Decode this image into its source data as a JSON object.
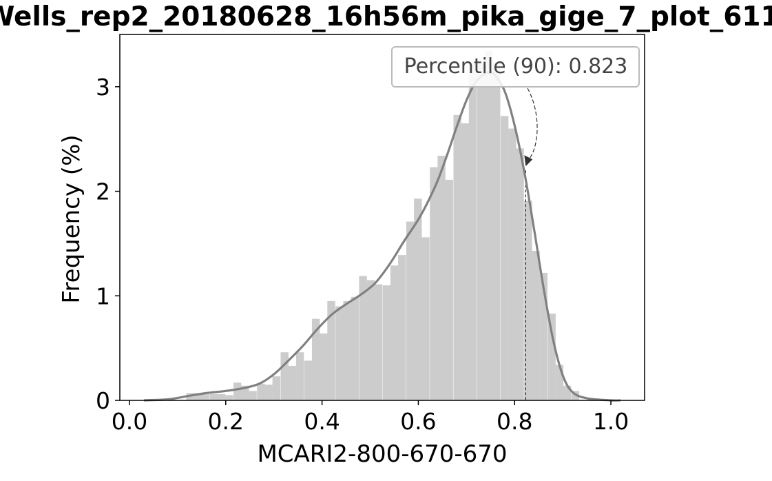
{
  "chart_data": {
    "type": "histogram",
    "title": "Wells_rep2_20180628_16h56m_pika_gige_7_plot_611",
    "xlabel": "MCARI2-800-670-670",
    "ylabel": "Frequency (%)",
    "xlim": [
      -0.02,
      1.07
    ],
    "ylim": [
      0,
      3.5
    ],
    "xticks": [
      0.0,
      0.2,
      0.4,
      0.6,
      0.8,
      1.0
    ],
    "xtick_labels": [
      "0.0",
      "0.2",
      "0.4",
      "0.6",
      "0.8",
      "1.0"
    ],
    "yticks": [
      0,
      1,
      2,
      3
    ],
    "ytick_labels": [
      "0",
      "1",
      "2",
      "3"
    ],
    "bin_width": 0.0163,
    "bins": [
      {
        "x0": 0.118,
        "h": 0.07
      },
      {
        "x0": 0.134,
        "h": 0.07
      },
      {
        "x0": 0.15,
        "h": 0.06
      },
      {
        "x0": 0.167,
        "h": 0.06
      },
      {
        "x0": 0.183,
        "h": 0.06
      },
      {
        "x0": 0.199,
        "h": 0.05
      },
      {
        "x0": 0.216,
        "h": 0.17
      },
      {
        "x0": 0.232,
        "h": 0.14
      },
      {
        "x0": 0.248,
        "h": 0.09
      },
      {
        "x0": 0.265,
        "h": 0.16
      },
      {
        "x0": 0.281,
        "h": 0.15
      },
      {
        "x0": 0.297,
        "h": 0.23
      },
      {
        "x0": 0.314,
        "h": 0.46
      },
      {
        "x0": 0.33,
        "h": 0.33
      },
      {
        "x0": 0.346,
        "h": 0.46
      },
      {
        "x0": 0.363,
        "h": 0.38
      },
      {
        "x0": 0.379,
        "h": 0.78
      },
      {
        "x0": 0.395,
        "h": 0.64
      },
      {
        "x0": 0.411,
        "h": 0.95
      },
      {
        "x0": 0.428,
        "h": 0.9
      },
      {
        "x0": 0.444,
        "h": 0.95
      },
      {
        "x0": 0.46,
        "h": 0.99
      },
      {
        "x0": 0.477,
        "h": 1.19
      },
      {
        "x0": 0.493,
        "h": 1.15
      },
      {
        "x0": 0.509,
        "h": 1.11
      },
      {
        "x0": 0.526,
        "h": 1.1
      },
      {
        "x0": 0.542,
        "h": 1.29
      },
      {
        "x0": 0.558,
        "h": 1.39
      },
      {
        "x0": 0.575,
        "h": 1.71
      },
      {
        "x0": 0.591,
        "h": 1.93
      },
      {
        "x0": 0.607,
        "h": 1.56
      },
      {
        "x0": 0.624,
        "h": 2.23
      },
      {
        "x0": 0.64,
        "h": 2.34
      },
      {
        "x0": 0.656,
        "h": 2.11
      },
      {
        "x0": 0.673,
        "h": 2.73
      },
      {
        "x0": 0.689,
        "h": 2.65
      },
      {
        "x0": 0.705,
        "h": 3.22
      },
      {
        "x0": 0.722,
        "h": 3.22
      },
      {
        "x0": 0.738,
        "h": 3.34
      },
      {
        "x0": 0.754,
        "h": 3.23
      },
      {
        "x0": 0.771,
        "h": 2.72
      },
      {
        "x0": 0.787,
        "h": 2.6
      },
      {
        "x0": 0.803,
        "h": 2.41
      },
      {
        "x0": 0.82,
        "h": 1.91
      },
      {
        "x0": 0.836,
        "h": 1.43
      },
      {
        "x0": 0.852,
        "h": 1.22
      },
      {
        "x0": 0.869,
        "h": 0.83
      },
      {
        "x0": 0.885,
        "h": 0.34
      },
      {
        "x0": 0.901,
        "h": 0.14
      },
      {
        "x0": 0.918,
        "h": 0.09
      }
    ],
    "kde": {
      "x": [
        0.03,
        0.08,
        0.12,
        0.16,
        0.2,
        0.24,
        0.27,
        0.3,
        0.33,
        0.36,
        0.39,
        0.42,
        0.45,
        0.48,
        0.51,
        0.54,
        0.57,
        0.6,
        0.62,
        0.64,
        0.66,
        0.68,
        0.7,
        0.72,
        0.74,
        0.75,
        0.76,
        0.78,
        0.8,
        0.82,
        0.84,
        0.86,
        0.88,
        0.9,
        0.92,
        0.95,
        1.0,
        1.02
      ],
      "y": [
        0.0,
        0.01,
        0.04,
        0.07,
        0.09,
        0.12,
        0.16,
        0.25,
        0.38,
        0.52,
        0.68,
        0.82,
        0.92,
        1.01,
        1.12,
        1.3,
        1.52,
        1.73,
        1.9,
        2.1,
        2.35,
        2.62,
        2.87,
        3.05,
        3.13,
        3.13,
        3.11,
        2.95,
        2.63,
        2.19,
        1.65,
        1.08,
        0.58,
        0.24,
        0.08,
        0.02,
        0.0,
        0.0
      ]
    },
    "percentile_line": {
      "x": 0.823,
      "y": 2.2
    },
    "annotation": {
      "text": "Percentile (90): 0.823"
    },
    "colors": {
      "bars": "#cccccc",
      "kde": "#808080",
      "annotation_border": "#bbbbbb",
      "annotation_text": "#444444"
    },
    "grid": false,
    "legend": "none"
  }
}
